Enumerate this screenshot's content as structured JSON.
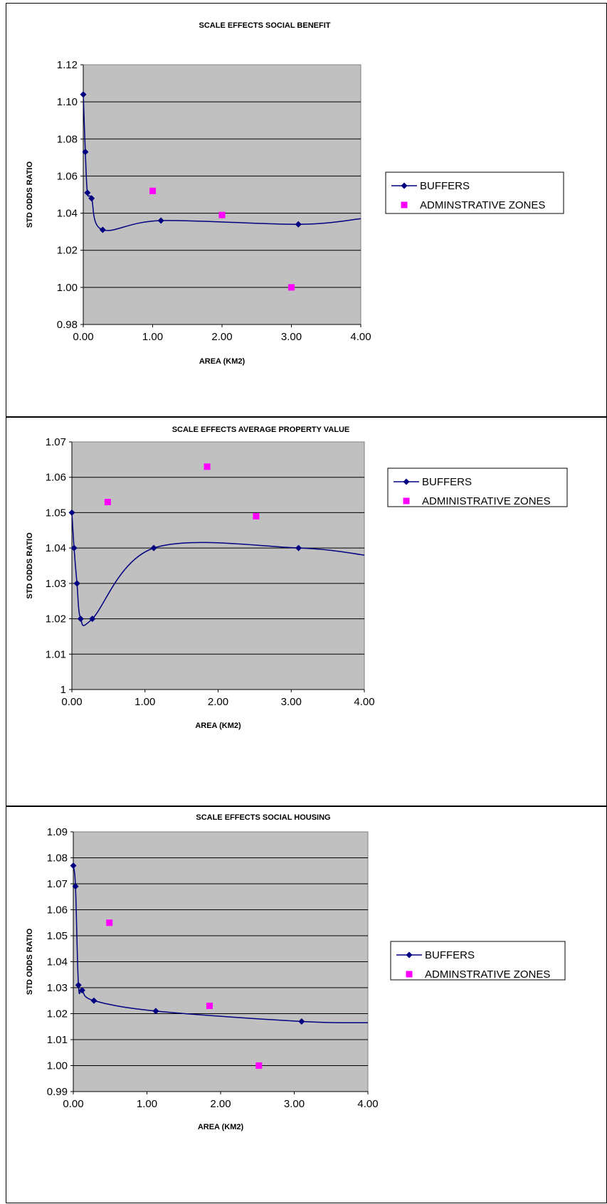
{
  "chart_data": [
    {
      "type": "scatter",
      "title": "SCALE EFFECTS SOCIAL BENEFIT",
      "xlabel": "AREA (KM2)",
      "ylabel": "STD ODDS RATIO",
      "xlim": [
        0,
        4
      ],
      "ylim": [
        0.98,
        1.12
      ],
      "x_ticks": [
        "0.00",
        "1.00",
        "2.00",
        "3.00",
        "4.00"
      ],
      "y_ticks": [
        "0.98",
        "1.00",
        "1.02",
        "1.04",
        "1.06",
        "1.08",
        "1.10",
        "1.12"
      ],
      "grid": true,
      "legend_position": "right",
      "series": [
        {
          "name": "BUFFERS",
          "mode": "smooth-line-markers",
          "x": [
            0.0,
            0.03,
            0.06,
            0.12,
            0.28,
            1.12,
            3.1
          ],
          "y": [
            1.104,
            1.073,
            1.051,
            1.048,
            1.031,
            1.036,
            1.034
          ],
          "tail": [
            4.0,
            1.037
          ]
        },
        {
          "name": "ADMINSTRATIVE ZONES",
          "mode": "markers",
          "x": [
            1.0,
            2.0,
            3.0
          ],
          "y": [
            1.052,
            1.039,
            1.0
          ]
        }
      ]
    },
    {
      "type": "scatter",
      "title": "SCALE EFFECTS AVERAGE PROPERTY VALUE",
      "xlabel": "AREA (KM2)",
      "ylabel": "STD ODDS RATIO",
      "xlim": [
        0,
        4
      ],
      "ylim": [
        1.0,
        1.07
      ],
      "x_ticks": [
        "0.00",
        "1.00",
        "2.00",
        "3.00",
        "4.00"
      ],
      "y_ticks": [
        "1",
        "1.01",
        "1.02",
        "1.03",
        "1.04",
        "1.05",
        "1.06",
        "1.07"
      ],
      "grid": true,
      "legend_position": "right",
      "series": [
        {
          "name": "BUFFERS",
          "mode": "smooth-line-markers",
          "x": [
            0.0,
            0.03,
            0.07,
            0.12,
            0.28,
            1.12,
            3.1
          ],
          "y": [
            1.05,
            1.04,
            1.03,
            1.02,
            1.02,
            1.04,
            1.04
          ],
          "tail": [
            4.0,
            1.038
          ]
        },
        {
          "name": "ADMINISTRATIVE ZONES",
          "mode": "markers",
          "x": [
            0.49,
            1.85,
            2.52
          ],
          "y": [
            1.053,
            1.063,
            1.049
          ]
        }
      ]
    },
    {
      "type": "scatter",
      "title": "SCALE EFFECTS SOCIAL HOUSING",
      "xlabel": "AREA (KM2)",
      "ylabel": "STD ODDS RATIO",
      "xlim": [
        0,
        4
      ],
      "ylim": [
        0.99,
        1.09
      ],
      "x_ticks": [
        "0.00",
        "1.00",
        "2.00",
        "3.00",
        "4.00"
      ],
      "y_ticks": [
        "0.99",
        "1.00",
        "1.01",
        "1.02",
        "1.03",
        "1.04",
        "1.05",
        "1.06",
        "1.07",
        "1.08",
        "1.09"
      ],
      "grid": true,
      "legend_position": "right",
      "series": [
        {
          "name": "BUFFERS",
          "mode": "smooth-line-markers",
          "x": [
            0.0,
            0.03,
            0.07,
            0.12,
            0.28,
            1.12,
            3.1
          ],
          "y": [
            1.077,
            1.069,
            1.031,
            1.029,
            1.025,
            1.021,
            1.017
          ],
          "tail": [
            4.0,
            1.0165
          ]
        },
        {
          "name": "ADMINSTRATIVE ZONES",
          "mode": "markers",
          "x": [
            0.49,
            1.85,
            2.52
          ],
          "y": [
            1.055,
            1.023,
            1.0
          ]
        }
      ]
    }
  ],
  "colors": {
    "plot_bg": "#c0c0c0",
    "grid": "#000000",
    "buffers_line": "#000080",
    "admin_marker": "#ff00ff"
  }
}
